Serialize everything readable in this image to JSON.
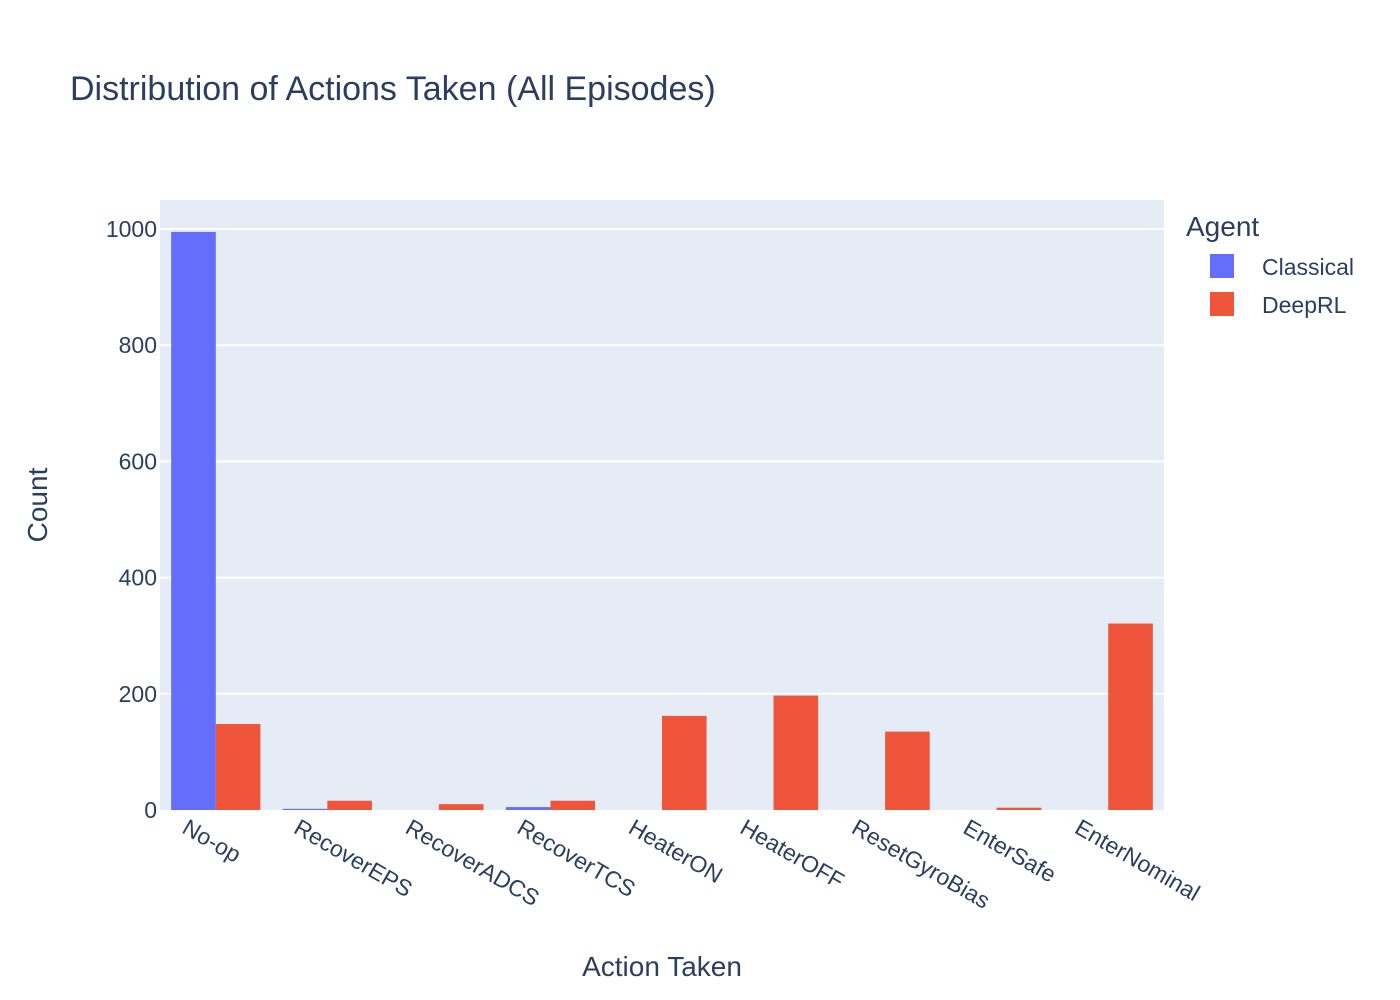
{
  "chart_data": {
    "type": "bar",
    "title": "Distribution of Actions Taken (All Episodes)",
    "xlabel": "Action Taken",
    "ylabel": "Count",
    "categories": [
      "No-op",
      "RecoverEPS",
      "RecoverADCS",
      "RecoverTCS",
      "HeaterON",
      "HeaterOFF",
      "ResetGyroBias",
      "EnterSafe",
      "EnterNominal"
    ],
    "series": [
      {
        "name": "Classical",
        "color": "#636efa",
        "values": [
          995,
          2,
          0,
          5,
          0,
          0,
          0,
          0,
          0
        ]
      },
      {
        "name": "DeepRL",
        "color": "#ef553b",
        "values": [
          148,
          16,
          10,
          16,
          162,
          197,
          135,
          4,
          321
        ]
      }
    ],
    "ylim": [
      0,
      1050
    ],
    "yticks": [
      0,
      200,
      400,
      600,
      800,
      1000
    ],
    "grid": true,
    "plot_background": "#e5ecf6",
    "legend": {
      "title": "Agent",
      "position": "top-right"
    }
  }
}
